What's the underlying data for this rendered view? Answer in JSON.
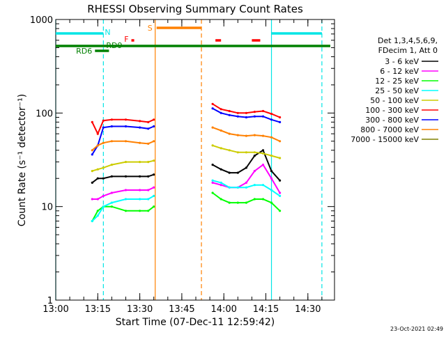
{
  "chart_data": {
    "type": "line",
    "title": "RHESSI Observing Summary Count Rates",
    "xlabel": "Start Time (07-Dec-11 12:59:42)",
    "ylabel": "Count Rate (s⁻¹ detector⁻¹)",
    "yscale": "log",
    "ylim": [
      1,
      1000
    ],
    "xlim": [
      "13:00",
      "14:38"
    ],
    "x_ticks": [
      "13:00",
      "13:15",
      "13:30",
      "13:45",
      "14:00",
      "14:15",
      "14:30"
    ],
    "y_ticks": [
      "1",
      "10",
      "100",
      "1000"
    ],
    "grid": false,
    "legend_position": "right",
    "legend_header": [
      "Det 1,3,4,5,6,9,",
      "FDecim 1, Att 0"
    ],
    "footer_date": "23-Oct-2021 02:49",
    "flags": [
      {
        "label": "N",
        "color": "#00e5e5",
        "segments": [
          [
            "13:00",
            "13:17"
          ],
          [
            "14:17",
            "14:35"
          ]
        ]
      },
      {
        "label": "S",
        "color": "#ff8000",
        "segments": [
          [
            "13:36",
            "13:52"
          ]
        ]
      },
      {
        "label": "F",
        "color": "#ff0000",
        "segments": [
          [
            "13:27",
            "13:28"
          ],
          [
            "13:57",
            "13:59"
          ],
          [
            "14:10",
            "14:13"
          ]
        ]
      },
      {
        "label": "RD9",
        "color": "#008000",
        "segments": [
          [
            "13:00",
            "14:38"
          ]
        ]
      },
      {
        "label": "RD6",
        "color": "#008000",
        "segments": [
          [
            "13:14",
            "13:19"
          ]
        ]
      }
    ],
    "markers": [
      {
        "time": "13:00",
        "color": "#00e5e5",
        "style": "solid"
      },
      {
        "time": "13:17",
        "color": "#00e5e5",
        "style": "dashed"
      },
      {
        "time": "13:35.5",
        "color": "#ff8000",
        "style": "solid"
      },
      {
        "time": "13:52",
        "color": "#ff8000",
        "style": "dashed"
      },
      {
        "time": "14:17",
        "color": "#00e5e5",
        "style": "solid"
      },
      {
        "time": "14:35",
        "color": "#00e5e5",
        "style": "dashed"
      }
    ],
    "x": [
      "13:13",
      "13:15",
      "13:17",
      "13:20",
      "13:25",
      "13:30",
      "13:33",
      "13:35",
      "13:53",
      "13:56",
      "13:59",
      "14:02",
      "14:05",
      "14:08",
      "14:11",
      "14:14",
      "14:17",
      "14:20"
    ],
    "series": [
      {
        "name": "3 - 6 keV",
        "color": "#000000",
        "values": [
          18,
          20,
          20,
          21,
          21,
          21,
          21,
          22,
          null,
          28,
          25,
          23,
          23,
          26,
          35,
          40,
          24,
          19
        ]
      },
      {
        "name": "6 - 12 keV",
        "color": "#ff00ff",
        "values": [
          12,
          12,
          13,
          14,
          15,
          15,
          15,
          16,
          null,
          18,
          17,
          16,
          16,
          18,
          24,
          28,
          20,
          14
        ]
      },
      {
        "name": "12 - 25 keV",
        "color": "#00ff00",
        "values": [
          7,
          9,
          10,
          10,
          9,
          9,
          9,
          10,
          null,
          14,
          12,
          11,
          11,
          11,
          12,
          12,
          11,
          9
        ]
      },
      {
        "name": "25 - 50 keV",
        "color": "#00ffff",
        "values": [
          7,
          8,
          10,
          11,
          12,
          12,
          12,
          13,
          null,
          19,
          18,
          16,
          16,
          16,
          17,
          17,
          15,
          13
        ]
      },
      {
        "name": "50 - 100 keV",
        "color": "#cccc00",
        "values": [
          24,
          25,
          26,
          28,
          30,
          30,
          30,
          31,
          null,
          45,
          42,
          40,
          38,
          38,
          38,
          37,
          35,
          33
        ]
      },
      {
        "name": "100 - 300 keV",
        "color": "#ff0000",
        "values": [
          80,
          60,
          83,
          85,
          85,
          82,
          80,
          85,
          null,
          125,
          110,
          105,
          100,
          100,
          103,
          105,
          98,
          90
        ]
      },
      {
        "name": "300 - 800 keV",
        "color": "#0000ff",
        "values": [
          36,
          45,
          70,
          72,
          72,
          70,
          68,
          72,
          null,
          112,
          100,
          95,
          92,
          90,
          92,
          92,
          85,
          80
        ]
      },
      {
        "name": "800 - 7000 keV",
        "color": "#ff8000",
        "values": [
          40,
          45,
          48,
          50,
          50,
          48,
          47,
          50,
          null,
          70,
          65,
          60,
          58,
          57,
          58,
          57,
          55,
          50
        ]
      },
      {
        "name": "7000 - 15000 keV",
        "color": "#808000",
        "values": [
          null,
          null,
          null,
          null,
          null,
          null,
          null,
          null,
          null,
          null,
          null,
          null,
          null,
          null,
          null,
          null,
          null,
          null
        ]
      }
    ]
  }
}
